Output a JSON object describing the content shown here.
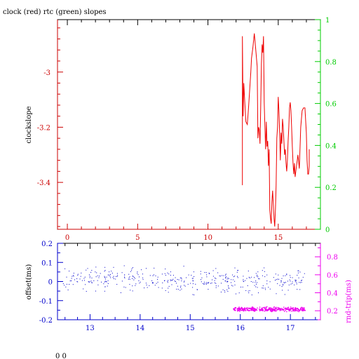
{
  "chart_data": [
    {
      "type": "line",
      "title": "clock (red) rtc (green) slopes",
      "ylabel": "clockslope",
      "xlabel": "",
      "xlim": [
        -0.7,
        18.0
      ],
      "ylim": [
        -3.57,
        -2.81
      ],
      "y2lim": [
        0,
        1
      ],
      "xticks": [
        "0",
        "5",
        "10",
        "15"
      ],
      "yticks": [
        "-3",
        "-3.2",
        "-3.4"
      ],
      "y2ticks": [
        "0",
        "0.2",
        "0.4",
        "0.6",
        "0.8",
        "1"
      ],
      "colors": {
        "axes": "#000000",
        "left_axis": "#cc0000",
        "right_axis": "#00cc00",
        "series": "#ee0000"
      },
      "series": [
        {
          "color": "#ee0000",
          "x": [
            12.45,
            12.45,
            12.5,
            12.55,
            12.6,
            12.7,
            12.8,
            12.9,
            13.0,
            13.05,
            13.1,
            13.2,
            13.3,
            13.4,
            13.5,
            13.55,
            13.6,
            13.65,
            13.7,
            13.75,
            13.8,
            13.85,
            13.9,
            13.95,
            14.0,
            14.05,
            14.1,
            14.15,
            14.2,
            14.25,
            14.3,
            14.35,
            14.4,
            14.45,
            14.5,
            14.55,
            14.6,
            14.65,
            14.7,
            14.75,
            14.8,
            14.85,
            14.9,
            14.95,
            15.0,
            15.05,
            15.1,
            15.15,
            15.2,
            15.25,
            15.3,
            15.35,
            15.4,
            15.45,
            15.5,
            15.55,
            15.6,
            15.65,
            15.7,
            15.75,
            15.8,
            15.85,
            15.9,
            15.95,
            16.0,
            16.05,
            16.1,
            16.15,
            16.2,
            16.3,
            16.4,
            16.5,
            16.6,
            16.7,
            16.8,
            16.9,
            17.0,
            17.05,
            17.1,
            17.15,
            17.2,
            17.2
          ],
          "y": [
            -3.41,
            -2.87,
            -3.16,
            -3.04,
            -3.09,
            -3.18,
            -3.19,
            -3.12,
            -3.04,
            -3.0,
            -2.95,
            -2.91,
            -2.86,
            -2.92,
            -2.98,
            -3.24,
            -3.2,
            -3.21,
            -3.26,
            -3.13,
            -2.97,
            -2.9,
            -2.93,
            -2.87,
            -3.11,
            -3.2,
            -3.28,
            -3.18,
            -3.27,
            -3.25,
            -3.34,
            -3.28,
            -3.5,
            -3.53,
            -3.55,
            -3.47,
            -3.43,
            -3.48,
            -3.53,
            -3.56,
            -3.5,
            -3.41,
            -3.24,
            -3.2,
            -3.09,
            -3.14,
            -3.22,
            -3.32,
            -3.22,
            -3.26,
            -3.17,
            -3.2,
            -3.25,
            -3.3,
            -3.28,
            -3.33,
            -3.36,
            -3.32,
            -3.25,
            -3.2,
            -3.13,
            -3.11,
            -3.14,
            -3.2,
            -3.27,
            -3.33,
            -3.37,
            -3.33,
            -3.38,
            -3.34,
            -3.3,
            -3.35,
            -3.2,
            -3.14,
            -3.13,
            -3.13,
            -3.22,
            -3.32,
            -3.37,
            -3.37,
            -3.34,
            -3.28
          ]
        }
      ]
    },
    {
      "type": "scatter",
      "title": "",
      "ylabel": "offset(ms)",
      "y2label": "rnd-trip(ms)",
      "xlabel": "",
      "xlim": [
        12.35,
        17.6
      ],
      "ylim": [
        -0.2,
        0.2
      ],
      "y2lim": [
        0.1,
        0.95
      ],
      "xticks": [
        "13",
        "14",
        "15",
        "16",
        "17"
      ],
      "yticks": [
        "0.2",
        "0.1",
        "0",
        "-0.1",
        "-0.2"
      ],
      "y2ticks": [
        "0.8",
        "0.6",
        "0.4",
        "0.2"
      ],
      "colors": {
        "axes": "#0000cc",
        "right_axis": "#ee00ee",
        "offset_points": "#0000cc",
        "roundtrip_points": "#ee00ee"
      },
      "series": [
        {
          "name": "offset",
          "color": "#0000cc",
          "x": [
            12.45,
            17.3
          ],
          "y": [
            0.02,
            0.0
          ],
          "spread": 0.09,
          "count": 420
        },
        {
          "name": "rnd-trip",
          "color": "#ee00ee",
          "x": [
            15.85,
            17.3
          ],
          "y": [
            0.22,
            0.22
          ],
          "spread": 0.035,
          "count": 380
        }
      ]
    }
  ],
  "footer": {
    "text": "0 0"
  }
}
